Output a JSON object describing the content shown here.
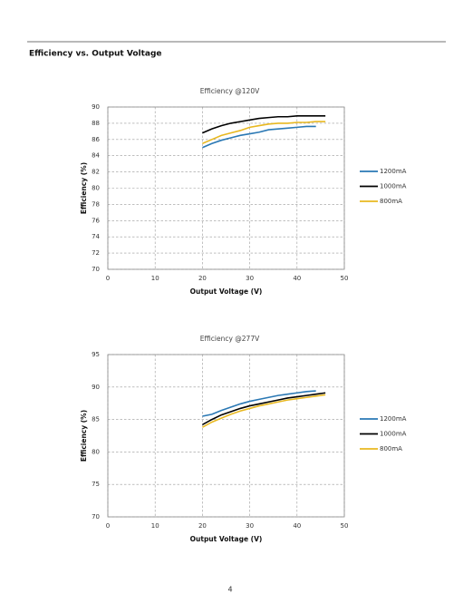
{
  "heading": "Efficiency vs. Output Voltage",
  "page_number": "4",
  "chart_data": [
    {
      "type": "line",
      "title": "Efficiency @120V",
      "xlabel": "Output Voltage (V)",
      "ylabel": "Efficiency (%)",
      "x": [
        20,
        22,
        24,
        26,
        28,
        30,
        32,
        34,
        36,
        38,
        40,
        42,
        44,
        46
      ],
      "series": [
        {
          "name": "1200mA",
          "color": "#2a78b4",
          "values": [
            85.0,
            85.5,
            85.9,
            86.2,
            86.5,
            86.7,
            86.9,
            87.2,
            87.3,
            87.4,
            87.5,
            87.6,
            87.6,
            null
          ]
        },
        {
          "name": "1000mA",
          "color": "#000000",
          "values": [
            86.8,
            87.3,
            87.7,
            88.0,
            88.2,
            88.4,
            88.6,
            88.7,
            88.8,
            88.8,
            88.9,
            88.9,
            88.9,
            88.9
          ]
        },
        {
          "name": "800mA",
          "color": "#e8b820",
          "values": [
            85.5,
            86.0,
            86.5,
            86.8,
            87.1,
            87.5,
            87.7,
            87.9,
            88.0,
            88.0,
            88.1,
            88.1,
            88.2,
            88.2
          ]
        }
      ],
      "xlim": [
        0,
        50
      ],
      "xticks": [
        0,
        10,
        20,
        30,
        40,
        50
      ],
      "ylim": [
        70,
        90
      ],
      "yticks": [
        70,
        72,
        74,
        76,
        78,
        80,
        82,
        84,
        86,
        88,
        90
      ],
      "grid": true,
      "legend": "right"
    },
    {
      "type": "line",
      "title": "Efficiency @277V",
      "xlabel": "Output Voltage (V)",
      "ylabel": "Efficiency (%)",
      "x": [
        20,
        22,
        24,
        26,
        28,
        30,
        32,
        34,
        36,
        38,
        40,
        42,
        44,
        46
      ],
      "series": [
        {
          "name": "1200mA",
          "color": "#2a78b4",
          "values": [
            85.5,
            85.8,
            86.4,
            86.9,
            87.4,
            87.8,
            88.1,
            88.4,
            88.7,
            88.9,
            89.1,
            89.3,
            89.4,
            null
          ]
        },
        {
          "name": "1000mA",
          "color": "#000000",
          "values": [
            84.2,
            85.0,
            85.7,
            86.2,
            86.7,
            87.1,
            87.4,
            87.7,
            88.0,
            88.3,
            88.5,
            88.7,
            88.9,
            89.1
          ]
        },
        {
          "name": "800mA",
          "color": "#e8b820",
          "values": [
            83.8,
            84.6,
            85.2,
            85.8,
            86.3,
            86.7,
            87.1,
            87.4,
            87.7,
            88.0,
            88.2,
            88.4,
            88.6,
            88.8
          ]
        }
      ],
      "xlim": [
        0,
        50
      ],
      "xticks": [
        0,
        10,
        20,
        30,
        40,
        50
      ],
      "ylim": [
        70,
        95
      ],
      "yticks": [
        70,
        75,
        80,
        85,
        90,
        95
      ],
      "grid": true,
      "legend": "right"
    }
  ]
}
